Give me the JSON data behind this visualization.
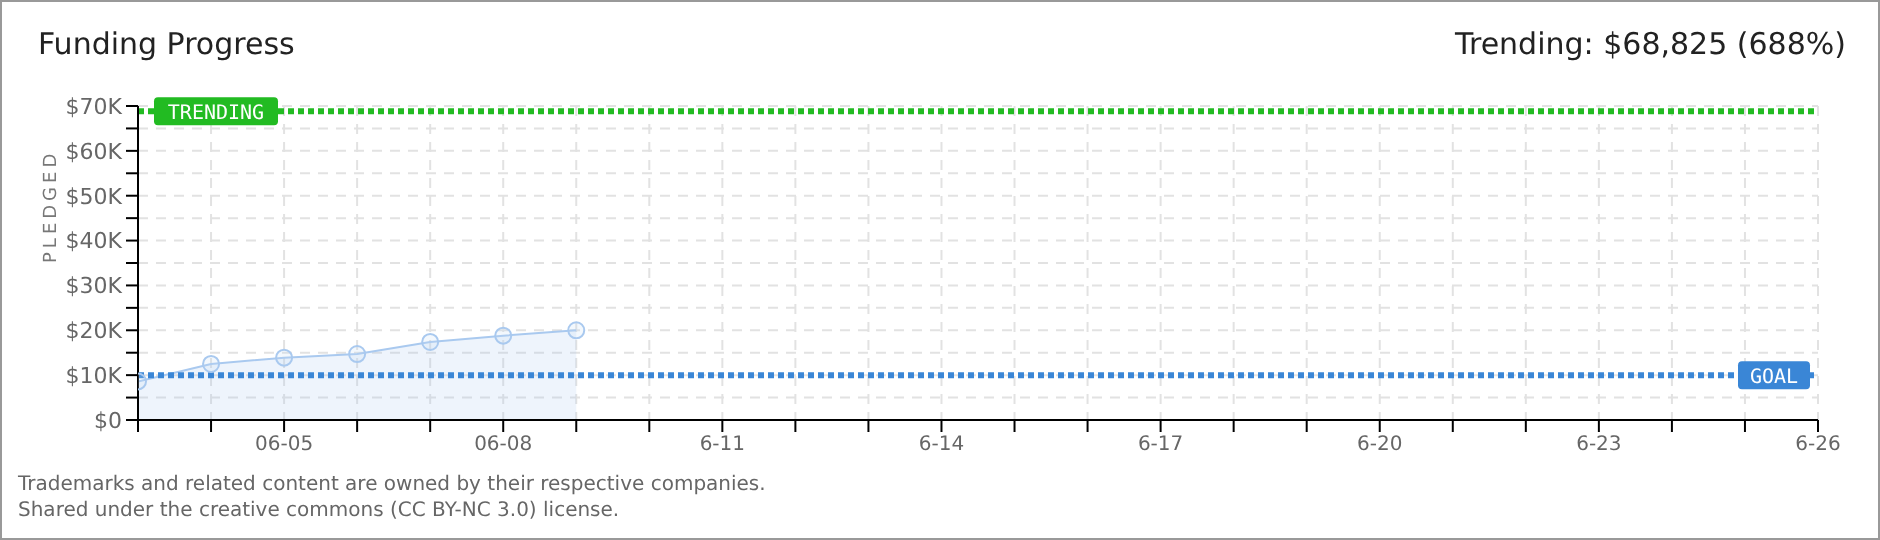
{
  "chart_data": {
    "type": "area",
    "title": "Funding Progress",
    "subtitle": "Trending: $68,825 (688%)",
    "ylabel": "PLEDGED",
    "x": [
      "--06-03",
      "--06-04",
      "--06-05",
      "--06-06",
      "--06-07",
      "--06-08",
      "--06-09"
    ],
    "series": [
      {
        "color": "#a9c9ef",
        "values": [
          8600,
          12500,
          13900,
          14700,
          17400,
          18800,
          20000
        ]
      }
    ],
    "xlim": [
      "--06-03",
      "--06-26"
    ],
    "xticks": [
      {
        "value": "--06-03",
        "label": null
      },
      {
        "value": "--06-04",
        "label": null
      },
      {
        "value": "--06-05",
        "label": "06-05"
      },
      {
        "value": "--06-06",
        "label": null
      },
      {
        "value": "--06-07",
        "label": null
      },
      {
        "value": "--06-08",
        "label": "06-08"
      },
      {
        "value": "--06-09",
        "label": null
      },
      {
        "value": "--06-10",
        "label": null
      },
      {
        "value": "--06-11",
        "label": "6-11"
      },
      {
        "value": "--06-12",
        "label": null
      },
      {
        "value": "--06-13",
        "label": null
      },
      {
        "value": "--06-14",
        "label": "6-14"
      },
      {
        "value": "--06-15",
        "label": null
      },
      {
        "value": "--06-16",
        "label": null
      },
      {
        "value": "--06-17",
        "label": "6-17"
      },
      {
        "value": "--06-18",
        "label": null
      },
      {
        "value": "--06-19",
        "label": null
      },
      {
        "value": "--06-20",
        "label": "6-20"
      },
      {
        "value": "--06-21",
        "label": null
      },
      {
        "value": "--06-22",
        "label": null
      },
      {
        "value": "--06-23",
        "label": "6-23"
      },
      {
        "value": "--06-24",
        "label": null
      },
      {
        "value": "--06-25",
        "label": null
      },
      {
        "value": "--06-26",
        "label": "6-26"
      }
    ],
    "ylim": [
      0,
      70000
    ],
    "yticks": [
      {
        "value": 0,
        "label": "$0"
      },
      {
        "value": 5000,
        "label": null
      },
      {
        "value": 10000,
        "label": "$10K"
      },
      {
        "value": 15000,
        "label": null
      },
      {
        "value": 20000,
        "label": "$20K"
      },
      {
        "value": 25000,
        "label": null
      },
      {
        "value": 30000,
        "label": "$30K"
      },
      {
        "value": 35000,
        "label": null
      },
      {
        "value": 40000,
        "label": "$40K"
      },
      {
        "value": 45000,
        "label": null
      },
      {
        "value": 50000,
        "label": "$50K"
      },
      {
        "value": 55000,
        "label": null
      },
      {
        "value": 60000,
        "label": "$60K"
      },
      {
        "value": 65000,
        "label": null
      },
      {
        "value": 70000,
        "label": "$70K"
      }
    ],
    "ref_lines": [
      {
        "axis": "y",
        "value": 68825,
        "label": "TRENDING",
        "color": "#22bb22",
        "line_style": "dotted"
      },
      {
        "axis": "y",
        "value": 10000,
        "label": "GOAL",
        "color": "#3a86d6",
        "line_style": "dotted"
      }
    ],
    "grid": true,
    "marker": "circle",
    "annotations": [
      "Trademarks and related content are owned by their respective companies.",
      "Shared under the creative commons (CC BY-NC 3.0) license."
    ]
  }
}
